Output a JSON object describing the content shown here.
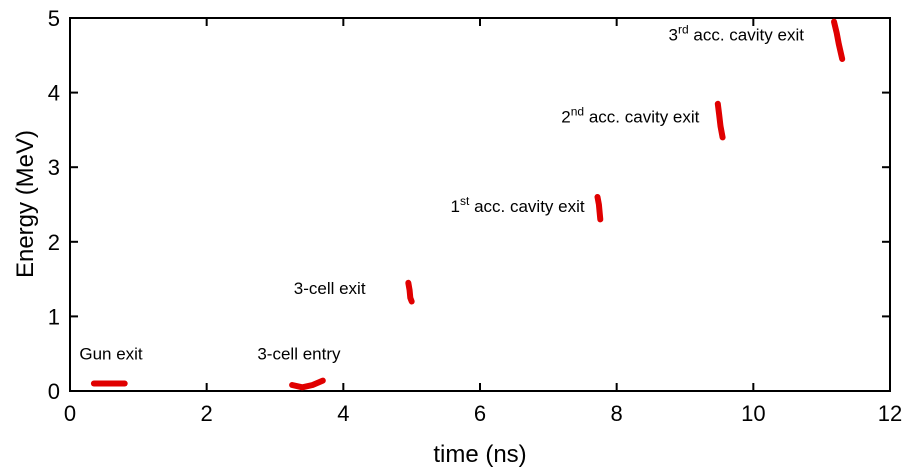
{
  "chart_data": {
    "type": "scatter",
    "xlabel": "time (ns)",
    "ylabel": "Energy (MeV)",
    "xlim": [
      0,
      12
    ],
    "ylim": [
      0,
      5
    ],
    "xticks": [
      0,
      2,
      4,
      6,
      8,
      10,
      12
    ],
    "yticks": [
      0,
      1,
      2,
      3,
      4,
      5
    ],
    "xtick_labels": [
      "0",
      "2",
      "4",
      "6",
      "8",
      "10",
      "12"
    ],
    "ytick_labels": [
      "0",
      "1",
      "2",
      "3",
      "4",
      "5"
    ],
    "grid": false,
    "series_color": "#e00000",
    "series": [
      {
        "label": "Gun exit",
        "points": [
          [
            0.35,
            0.1
          ],
          [
            0.8,
            0.1
          ]
        ]
      },
      {
        "label": "3-cell entry",
        "points": [
          [
            3.25,
            0.08
          ],
          [
            3.4,
            0.05
          ],
          [
            3.55,
            0.08
          ],
          [
            3.7,
            0.14
          ]
        ]
      },
      {
        "label": "3-cell exit",
        "points": [
          [
            4.95,
            1.45
          ],
          [
            4.97,
            1.35
          ],
          [
            4.98,
            1.25
          ],
          [
            5.0,
            1.2
          ]
        ]
      },
      {
        "label": "1st acc. cavity exit",
        "points": [
          [
            7.72,
            2.6
          ],
          [
            7.74,
            2.5
          ],
          [
            7.75,
            2.4
          ],
          [
            7.76,
            2.3
          ]
        ]
      },
      {
        "label": "2nd acc. cavity exit",
        "points": [
          [
            9.48,
            3.85
          ],
          [
            9.5,
            3.7
          ],
          [
            9.52,
            3.55
          ],
          [
            9.55,
            3.4
          ]
        ]
      },
      {
        "label": "3rd acc. cavity exit",
        "points": [
          [
            11.18,
            4.95
          ],
          [
            11.22,
            4.8
          ],
          [
            11.25,
            4.65
          ],
          [
            11.3,
            4.45
          ]
        ]
      }
    ],
    "annotations": [
      {
        "text": "Gun exit",
        "base": "Gun exit",
        "sup": "",
        "rest": "",
        "x": 0.6,
        "y": 0.42
      },
      {
        "text": "3-cell entry",
        "base": "3-cell entry",
        "sup": "",
        "rest": "",
        "x": 3.35,
        "y": 0.42
      },
      {
        "text": "3-cell exit",
        "base": "3-cell exit",
        "sup": "",
        "rest": "",
        "x": 3.8,
        "y": 1.3
      },
      {
        "text": "1st acc. cavity exit",
        "base": "1",
        "sup": "st",
        "rest": " acc. cavity exit",
        "x": 6.55,
        "y": 2.4
      },
      {
        "text": "2nd acc. cavity exit",
        "base": "2",
        "sup": "nd",
        "rest": " acc. cavity exit",
        "x": 8.2,
        "y": 3.6
      },
      {
        "text": "3rd acc. cavity exit",
        "base": "3",
        "sup": "rd",
        "rest": " acc. cavity exit",
        "x": 9.75,
        "y": 4.7
      }
    ]
  }
}
